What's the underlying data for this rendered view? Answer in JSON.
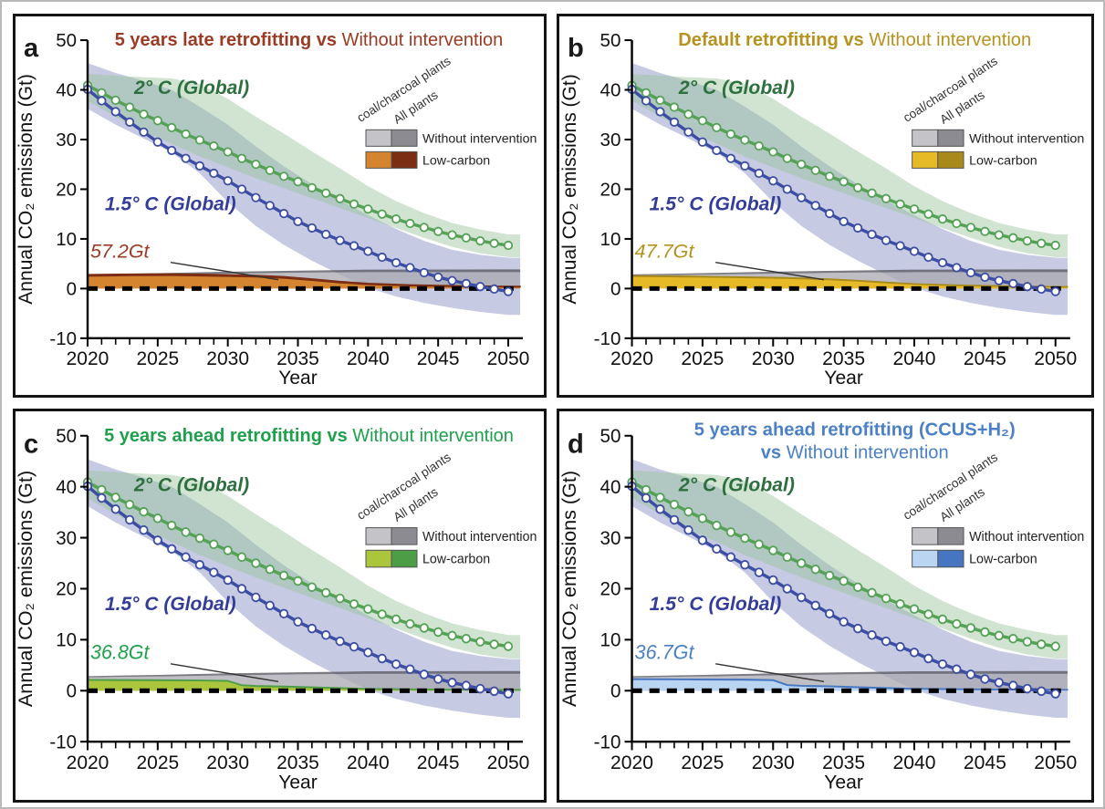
{
  "figure": {
    "y_axis_label": "Annual CO₂ emissions (Gt)",
    "x_axis_label": "Year",
    "y_ticks": [
      50,
      40,
      30,
      20,
      10,
      0,
      -10
    ],
    "x_major_ticks": [
      2020,
      2025,
      2030,
      2035,
      2040,
      2045,
      2050
    ],
    "series_labels": {
      "two_deg": "2° C (Global)",
      "one_half_deg": "1.5° C (Global)"
    },
    "series_label_colors": {
      "two_deg": "#2e6f3f",
      "one_half_deg": "#333d99"
    }
  },
  "legend": {
    "column_labels": [
      "coal/charcoal plants",
      "All plants"
    ],
    "row_without_label": "Without intervention",
    "row_low_label": "Low-carbon",
    "gray_light": "#c4c4c8",
    "gray_dark": "#8b8b91"
  },
  "panels": [
    {
      "letter": "a",
      "title": [
        {
          "t": "5 years late retrofitting vs ",
          "b": true
        },
        {
          "t": "Without intervention",
          "b": false
        }
      ],
      "title2": null,
      "color": "#9c3b24",
      "annotation": "57.2Gt",
      "lc_light": "#d4842e",
      "lc_dark": "#7c2e15"
    },
    {
      "letter": "b",
      "title": [
        {
          "t": "Default retrofitting vs ",
          "b": true
        },
        {
          "t": "Without intervention",
          "b": false
        }
      ],
      "title2": null,
      "color": "#b6921f",
      "annotation": "47.7Gt",
      "lc_light": "#e6ba27",
      "lc_dark": "#a8891c"
    },
    {
      "letter": "c",
      "title": [
        {
          "t": "5 years ahead retrofitting vs ",
          "b": true
        },
        {
          "t": "Without intervention",
          "b": false
        }
      ],
      "title2": null,
      "color": "#1fa04c",
      "annotation": "36.8Gt",
      "lc_light": "#abc53d",
      "lc_dark": "#4c9d45"
    },
    {
      "letter": "d",
      "title": [
        {
          "t": "5 years ahead retrofitting (CCUS+H₂)",
          "b": true
        }
      ],
      "title2": [
        {
          "t": "vs ",
          "b": true
        },
        {
          "t": "Without intervention",
          "b": false
        }
      ],
      "color": "#4b80c6",
      "annotation": "36.7Gt",
      "lc_light": "#b9d5f2",
      "lc_dark": "#4676c2"
    }
  ],
  "chart_data": {
    "type": "line",
    "xlabel": "Year",
    "ylabel": "Annual CO₂ emissions (Gt)",
    "xlim": [
      2020,
      2050
    ],
    "ylim": [
      -10,
      50
    ],
    "grid": false,
    "x": [
      2020,
      2021,
      2022,
      2023,
      2024,
      2025,
      2026,
      2027,
      2028,
      2029,
      2030,
      2031,
      2032,
      2033,
      2034,
      2035,
      2036,
      2037,
      2038,
      2039,
      2040,
      2041,
      2042,
      2043,
      2044,
      2045,
      2046,
      2047,
      2048,
      2049,
      2050
    ],
    "series": [
      {
        "name": "2° C (Global)",
        "color": "#55a257",
        "values": [
          40.9,
          39.4,
          37.9,
          36.5,
          35.1,
          33.8,
          32.4,
          31.1,
          29.9,
          28.7,
          27.5,
          26.2,
          25.0,
          23.8,
          22.6,
          21.5,
          20.3,
          19.2,
          18.1,
          17.0,
          16.0,
          15.0,
          14.0,
          13.1,
          12.3,
          11.5,
          10.8,
          10.2,
          9.6,
          9.1,
          8.7
        ]
      },
      {
        "name": "1.5° C (Global)",
        "color": "#3c4ea3",
        "values": [
          40.1,
          37.8,
          35.6,
          33.5,
          31.5,
          29.5,
          27.8,
          26.2,
          24.7,
          23.2,
          21.7,
          20.0,
          18.3,
          16.7,
          15.1,
          13.5,
          12.2,
          10.9,
          9.7,
          8.6,
          7.5,
          6.3,
          5.2,
          4.2,
          3.2,
          2.3,
          1.6,
          1.0,
          0.4,
          -0.1,
          -0.6
        ]
      }
    ],
    "bands": {
      "green_band": {
        "upper": [
          [
            2020,
            43.2
          ],
          [
            2023,
            42.7
          ],
          [
            2026,
            42.3
          ],
          [
            2028,
            41.2
          ],
          [
            2030,
            38.2
          ],
          [
            2032,
            34.6
          ],
          [
            2034,
            31.2
          ],
          [
            2036,
            27.6
          ],
          [
            2038,
            24.2
          ],
          [
            2040,
            20.6
          ],
          [
            2042,
            17.6
          ],
          [
            2044,
            15.2
          ],
          [
            2046,
            13.2
          ],
          [
            2048,
            11.9
          ],
          [
            2050,
            10.9
          ]
        ],
        "lower": [
          [
            2020,
            37.8
          ],
          [
            2022,
            34.6
          ],
          [
            2024,
            31.6
          ],
          [
            2026,
            29.2
          ],
          [
            2028,
            26.6
          ],
          [
            2030,
            24.4
          ],
          [
            2032,
            22.2
          ],
          [
            2034,
            20.2
          ],
          [
            2036,
            18.2
          ],
          [
            2038,
            16.2
          ],
          [
            2040,
            14.2
          ],
          [
            2042,
            12.2
          ],
          [
            2044,
            10.2
          ],
          [
            2046,
            8.4
          ],
          [
            2048,
            7.1
          ],
          [
            2050,
            6.3
          ]
        ]
      },
      "blue_band": {
        "upper": [
          [
            2020,
            45.4
          ],
          [
            2022,
            43.4
          ],
          [
            2024,
            41.8
          ],
          [
            2026,
            40.0
          ],
          [
            2028,
            36.6
          ],
          [
            2030,
            33.0
          ],
          [
            2032,
            28.6
          ],
          [
            2034,
            24.6
          ],
          [
            2036,
            21.0
          ],
          [
            2038,
            17.8
          ],
          [
            2040,
            14.8
          ],
          [
            2042,
            12.0
          ],
          [
            2044,
            9.6
          ],
          [
            2046,
            7.8
          ],
          [
            2048,
            6.8
          ],
          [
            2050,
            6.2
          ]
        ],
        "lower": [
          [
            2020,
            36.2
          ],
          [
            2022,
            33.0
          ],
          [
            2024,
            30.2
          ],
          [
            2026,
            27.4
          ],
          [
            2028,
            23.2
          ],
          [
            2030,
            17.4
          ],
          [
            2032,
            12.6
          ],
          [
            2034,
            8.8
          ],
          [
            2036,
            5.6
          ],
          [
            2038,
            2.8
          ],
          [
            2040,
            0.2
          ],
          [
            2042,
            -1.6
          ],
          [
            2044,
            -2.9
          ],
          [
            2046,
            -3.9
          ],
          [
            2048,
            -4.7
          ],
          [
            2050,
            -5.3
          ]
        ]
      },
      "no_intervention": {
        "coal_top": [
          [
            2020,
            2.6
          ],
          [
            2025,
            2.8
          ],
          [
            2030,
            3.0
          ],
          [
            2035,
            3.2
          ],
          [
            2040,
            3.3
          ],
          [
            2050,
            3.3
          ]
        ],
        "all_top": [
          [
            2020,
            2.85
          ],
          [
            2025,
            3.1
          ],
          [
            2030,
            3.4
          ],
          [
            2035,
            3.6
          ],
          [
            2040,
            3.8
          ],
          [
            2050,
            3.85
          ]
        ]
      }
    },
    "panels": {
      "a": {
        "cumulative_label": "57.2Gt",
        "low_carbon_coal": [
          [
            2020,
            2.5
          ],
          [
            2023,
            2.6
          ],
          [
            2026,
            2.65
          ],
          [
            2029,
            2.5
          ],
          [
            2032,
            2.35
          ],
          [
            2034,
            2.1
          ],
          [
            2036,
            1.65
          ],
          [
            2038,
            1.15
          ],
          [
            2040,
            0.8
          ],
          [
            2043,
            0.55
          ],
          [
            2046,
            0.42
          ],
          [
            2050,
            0.32
          ]
        ],
        "low_carbon_all": [
          [
            2020,
            2.82
          ],
          [
            2023,
            2.92
          ],
          [
            2026,
            2.98
          ],
          [
            2029,
            2.84
          ],
          [
            2032,
            2.66
          ],
          [
            2034,
            2.42
          ],
          [
            2036,
            1.96
          ],
          [
            2038,
            1.44
          ],
          [
            2040,
            1.06
          ],
          [
            2043,
            0.76
          ],
          [
            2046,
            0.6
          ],
          [
            2050,
            0.46
          ]
        ]
      },
      "b": {
        "cumulative_label": "47.7Gt",
        "low_carbon_coal": [
          [
            2020,
            2.45
          ],
          [
            2024,
            2.35
          ],
          [
            2028,
            2.2
          ],
          [
            2031,
            2.05
          ],
          [
            2034,
            1.8
          ],
          [
            2036,
            1.5
          ],
          [
            2038,
            1.15
          ],
          [
            2040,
            0.85
          ],
          [
            2043,
            0.6
          ],
          [
            2046,
            0.45
          ],
          [
            2050,
            0.3
          ]
        ],
        "low_carbon_all": [
          [
            2020,
            2.6
          ],
          [
            2024,
            2.5
          ],
          [
            2028,
            2.35
          ],
          [
            2031,
            2.2
          ],
          [
            2034,
            1.95
          ],
          [
            2036,
            1.64
          ],
          [
            2038,
            1.28
          ],
          [
            2040,
            0.97
          ],
          [
            2043,
            0.71
          ],
          [
            2046,
            0.55
          ],
          [
            2050,
            0.39
          ]
        ]
      },
      "c": {
        "cumulative_label": "36.8Gt",
        "low_carbon_coal": [
          [
            2020,
            2.05
          ],
          [
            2024,
            2.0
          ],
          [
            2028,
            1.95
          ],
          [
            2030,
            1.85
          ],
          [
            2031,
            1.0
          ],
          [
            2032,
            0.85
          ],
          [
            2034,
            0.75
          ],
          [
            2036,
            0.6
          ],
          [
            2038,
            0.45
          ],
          [
            2040,
            0.3
          ],
          [
            2044,
            0.2
          ],
          [
            2050,
            0.12
          ]
        ],
        "low_carbon_all": [
          [
            2020,
            2.18
          ],
          [
            2024,
            2.13
          ],
          [
            2028,
            2.08
          ],
          [
            2030,
            1.98
          ],
          [
            2031,
            1.13
          ],
          [
            2032,
            0.98
          ],
          [
            2034,
            0.88
          ],
          [
            2036,
            0.73
          ],
          [
            2038,
            0.57
          ],
          [
            2040,
            0.42
          ],
          [
            2044,
            0.3
          ],
          [
            2050,
            0.21
          ]
        ]
      },
      "d": {
        "cumulative_label": "36.7Gt",
        "low_carbon_coal": [
          [
            2020,
            2.2
          ],
          [
            2024,
            2.15
          ],
          [
            2028,
            2.1
          ],
          [
            2030,
            2.0
          ],
          [
            2031,
            1.05
          ],
          [
            2032,
            0.9
          ],
          [
            2034,
            0.8
          ],
          [
            2036,
            0.62
          ],
          [
            2038,
            0.46
          ],
          [
            2040,
            0.32
          ],
          [
            2044,
            0.22
          ],
          [
            2050,
            0.15
          ]
        ],
        "low_carbon_all": [
          [
            2020,
            2.33
          ],
          [
            2024,
            2.28
          ],
          [
            2028,
            2.23
          ],
          [
            2030,
            2.13
          ],
          [
            2031,
            1.18
          ],
          [
            2032,
            1.03
          ],
          [
            2034,
            0.93
          ],
          [
            2036,
            0.75
          ],
          [
            2038,
            0.58
          ],
          [
            2040,
            0.44
          ],
          [
            2044,
            0.32
          ],
          [
            2050,
            0.24
          ]
        ]
      }
    }
  }
}
